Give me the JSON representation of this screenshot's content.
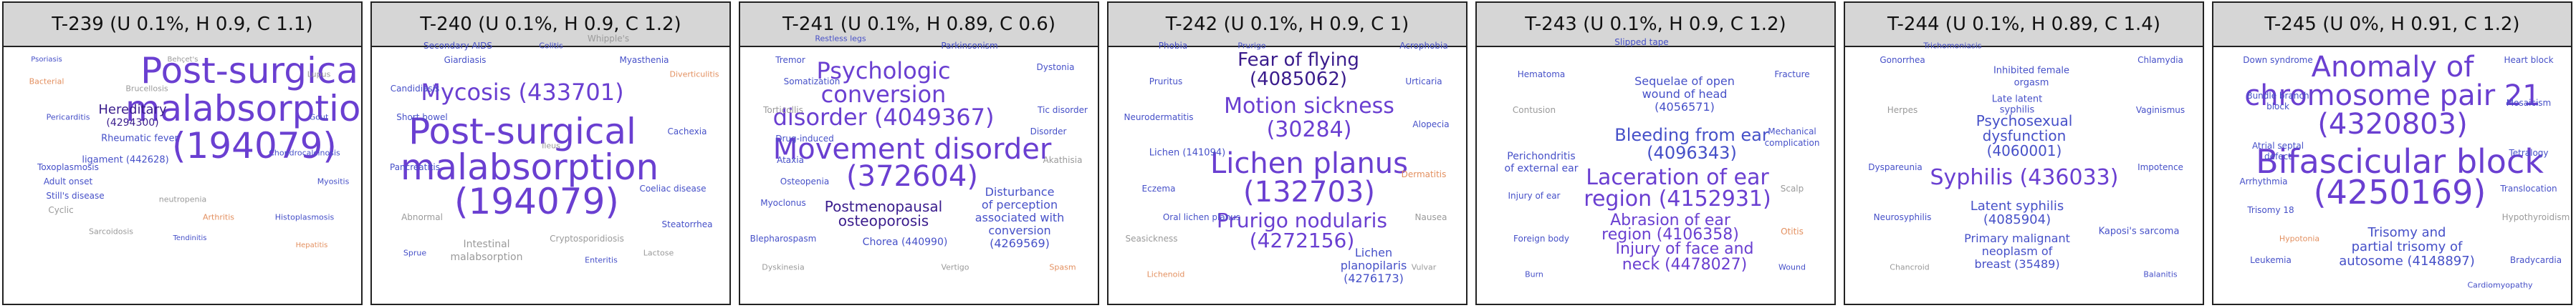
{
  "colors": {
    "purple": "#6a3fd1",
    "dark_purple": "#3a1c8c",
    "blue": "#4650c8",
    "teal": "#2b7b9a",
    "gray": "#9a9a9a",
    "orange": "#e39060",
    "header_bg": "#d6d6d6"
  },
  "panels": [
    {
      "title": "T-239 (U 0.1%, H 0.9, C 1.1)",
      "words": [
        {
          "t": "Post-surgical",
          "c": "purple"
        },
        {
          "t": "malabsorption",
          "c": "purple"
        },
        {
          "t": "(194079)",
          "c": "purple"
        },
        {
          "t": "Hereditary",
          "c": "dark_purple"
        },
        {
          "t": "(4294300)",
          "c": "dark_purple"
        },
        {
          "t": "Rheumatic fever",
          "c": "blue"
        },
        {
          "t": "ligament (442628)",
          "c": "blue"
        },
        {
          "t": "Toxoplasmosis",
          "c": "blue"
        },
        {
          "t": "Adult onset",
          "c": "blue"
        },
        {
          "t": "Still's disease",
          "c": "blue"
        },
        {
          "t": "Cyclic",
          "c": "gray"
        },
        {
          "t": "neutropenia",
          "c": "gray"
        },
        {
          "t": "Bacterial",
          "c": "orange"
        },
        {
          "t": "Lupus",
          "c": "gray"
        },
        {
          "t": "Pericarditis",
          "c": "blue"
        },
        {
          "t": "Histoplasmosis",
          "c": "blue"
        },
        {
          "t": "Sarcoidosis",
          "c": "gray"
        },
        {
          "t": "Gout",
          "c": "blue"
        },
        {
          "t": "Myositis",
          "c": "blue"
        },
        {
          "t": "Arthritis",
          "c": "orange"
        },
        {
          "t": "Brucellosis",
          "c": "gray"
        },
        {
          "t": "Chondrocalcinosis",
          "c": "blue"
        },
        {
          "t": "Psoriasis",
          "c": "blue"
        },
        {
          "t": "Behçet's",
          "c": "gray"
        },
        {
          "t": "Hepatitis",
          "c": "orange"
        },
        {
          "t": "Tendinitis",
          "c": "blue"
        }
      ]
    },
    {
      "title": "T-240 (U 0.1%, H 0.9, C 1.2)",
      "words": [
        {
          "t": "Mycosis (433701)",
          "c": "purple"
        },
        {
          "t": "Post-surgical",
          "c": "purple"
        },
        {
          "t": "malabsorption",
          "c": "purple"
        },
        {
          "t": "(194079)",
          "c": "purple"
        },
        {
          "t": "Intestinal",
          "c": "gray"
        },
        {
          "t": "malabsorption",
          "c": "gray"
        },
        {
          "t": "Secondary AIDS",
          "c": "blue"
        },
        {
          "t": "Myasthenia",
          "c": "blue"
        },
        {
          "t": "Candidiasis",
          "c": "blue"
        },
        {
          "t": "Coeliac disease",
          "c": "blue"
        },
        {
          "t": "Abnormal",
          "c": "gray"
        },
        {
          "t": "Cachexia",
          "c": "blue"
        },
        {
          "t": "Short bowel",
          "c": "blue"
        },
        {
          "t": "Cryptosporidiosis",
          "c": "gray"
        },
        {
          "t": "Pancreatitis",
          "c": "blue"
        },
        {
          "t": "Steatorrhea",
          "c": "blue"
        },
        {
          "t": "Whipple's",
          "c": "gray"
        },
        {
          "t": "Giardiasis",
          "c": "blue"
        },
        {
          "t": "Sprue",
          "c": "blue"
        },
        {
          "t": "Lactose",
          "c": "gray"
        },
        {
          "t": "Diverticulitis",
          "c": "orange"
        },
        {
          "t": "Enteritis",
          "c": "blue"
        },
        {
          "t": "Colitis",
          "c": "blue"
        },
        {
          "t": "Ileus",
          "c": "gray"
        }
      ]
    },
    {
      "title": "T-241 (U 0.1%, H 0.89, C 0.6)",
      "words": [
        {
          "t": "Psychologic",
          "c": "purple"
        },
        {
          "t": "conversion",
          "c": "purple"
        },
        {
          "t": "disorder (4049367)",
          "c": "purple"
        },
        {
          "t": "Movement disorder",
          "c": "purple"
        },
        {
          "t": "(372604)",
          "c": "purple"
        },
        {
          "t": "Postmenopausal",
          "c": "dark_purple"
        },
        {
          "t": "osteoporosis",
          "c": "dark_purple"
        },
        {
          "t": "Disturbance",
          "c": "blue"
        },
        {
          "t": "of perception",
          "c": "blue"
        },
        {
          "t": "associated with",
          "c": "blue"
        },
        {
          "t": "conversion",
          "c": "blue"
        },
        {
          "t": "(4269569)",
          "c": "blue"
        },
        {
          "t": "Chorea (440990)",
          "c": "blue"
        },
        {
          "t": "Tremor",
          "c": "blue"
        },
        {
          "t": "Dystonia",
          "c": "blue"
        },
        {
          "t": "Torticollis",
          "c": "gray"
        },
        {
          "t": "Tic disorder",
          "c": "blue"
        },
        {
          "t": "Ataxia",
          "c": "blue"
        },
        {
          "t": "Myoclonus",
          "c": "blue"
        },
        {
          "t": "Akathisia",
          "c": "gray"
        },
        {
          "t": "Blepharospasm",
          "c": "blue"
        },
        {
          "t": "Parkinsonism",
          "c": "blue"
        },
        {
          "t": "Osteopenia",
          "c": "blue"
        },
        {
          "t": "Drug-induced",
          "c": "blue"
        },
        {
          "t": "Somatization",
          "c": "blue"
        },
        {
          "t": "Disorder",
          "c": "blue"
        },
        {
          "t": "Dyskinesia",
          "c": "gray"
        },
        {
          "t": "Spasm",
          "c": "orange"
        },
        {
          "t": "Vertigo",
          "c": "gray"
        },
        {
          "t": "Restless legs",
          "c": "blue"
        }
      ]
    },
    {
      "title": "T-242 (U 0.1%, H 0.9, C 1)",
      "words": [
        {
          "t": "Fear of flying",
          "c": "dark_purple"
        },
        {
          "t": "(4085062)",
          "c": "dark_purple"
        },
        {
          "t": "Motion sickness",
          "c": "purple"
        },
        {
          "t": "(30284)",
          "c": "purple"
        },
        {
          "t": "Lichen planus",
          "c": "purple"
        },
        {
          "t": "(132703)",
          "c": "purple"
        },
        {
          "t": "Prurigo nodularis",
          "c": "purple"
        },
        {
          "t": "(4272156)",
          "c": "purple"
        },
        {
          "t": "Lichen",
          "c": "blue"
        },
        {
          "t": "planopilaris",
          "c": "blue"
        },
        {
          "t": "(4276173)",
          "c": "blue"
        },
        {
          "t": "Lichen (141094)",
          "c": "blue"
        },
        {
          "t": "Pruritus",
          "c": "blue"
        },
        {
          "t": "Urticaria",
          "c": "blue"
        },
        {
          "t": "Neurodermatitis",
          "c": "blue"
        },
        {
          "t": "Alopecia",
          "c": "blue"
        },
        {
          "t": "Phobia",
          "c": "blue"
        },
        {
          "t": "Dermatitis",
          "c": "orange"
        },
        {
          "t": "Eczema",
          "c": "blue"
        },
        {
          "t": "Nausea",
          "c": "gray"
        },
        {
          "t": "Seasickness",
          "c": "gray"
        },
        {
          "t": "Acrophobia",
          "c": "blue"
        },
        {
          "t": "Lichenoid",
          "c": "orange"
        },
        {
          "t": "Oral lichen planus",
          "c": "blue"
        },
        {
          "t": "Vulvar",
          "c": "gray"
        },
        {
          "t": "Prurigo",
          "c": "blue"
        }
      ]
    },
    {
      "title": "T-243 (U 0.1%, H 0.9, C 1.2)",
      "words": [
        {
          "t": "Sequelae of open",
          "c": "blue"
        },
        {
          "t": "wound of head",
          "c": "blue"
        },
        {
          "t": "(4056571)",
          "c": "blue"
        },
        {
          "t": "Bleeding from ear",
          "c": "blue"
        },
        {
          "t": "(4096343)",
          "c": "blue"
        },
        {
          "t": "Laceration of ear",
          "c": "purple"
        },
        {
          "t": "region (4152931)",
          "c": "purple"
        },
        {
          "t": "Abrasion of ear",
          "c": "purple"
        },
        {
          "t": "region (4106358)",
          "c": "purple"
        },
        {
          "t": "Injury of face and",
          "c": "purple"
        },
        {
          "t": "neck (4478027)",
          "c": "purple"
        },
        {
          "t": "Slipped tape",
          "c": "blue"
        },
        {
          "t": "Mechanical",
          "c": "blue"
        },
        {
          "t": "complication",
          "c": "blue"
        },
        {
          "t": "Perichondritis",
          "c": "blue"
        },
        {
          "t": "of external ear",
          "c": "blue"
        },
        {
          "t": "Injury of ear",
          "c": "blue"
        },
        {
          "t": "Hematoma",
          "c": "blue"
        },
        {
          "t": "Fracture",
          "c": "blue"
        },
        {
          "t": "Contusion",
          "c": "gray"
        },
        {
          "t": "Scalp",
          "c": "gray"
        },
        {
          "t": "Foreign body",
          "c": "blue"
        },
        {
          "t": "Otitis",
          "c": "orange"
        },
        {
          "t": "Burn",
          "c": "blue"
        },
        {
          "t": "Wound",
          "c": "blue"
        }
      ]
    },
    {
      "title": "T-244 (U 0.1%, H 0.89, C 1.4)",
      "words": [
        {
          "t": "Psychosexual",
          "c": "blue"
        },
        {
          "t": "dysfunction",
          "c": "blue"
        },
        {
          "t": "(4060001)",
          "c": "blue"
        },
        {
          "t": "Syphilis (436033)",
          "c": "purple"
        },
        {
          "t": "Latent syphilis",
          "c": "blue"
        },
        {
          "t": "(4085904)",
          "c": "blue"
        },
        {
          "t": "Primary malignant",
          "c": "blue"
        },
        {
          "t": "neoplasm of",
          "c": "blue"
        },
        {
          "t": "breast (35489)",
          "c": "blue"
        },
        {
          "t": "Kaposi's sarcoma",
          "c": "blue"
        },
        {
          "t": "Inhibited female",
          "c": "blue"
        },
        {
          "t": "orgasm",
          "c": "blue"
        },
        {
          "t": "Late latent",
          "c": "blue"
        },
        {
          "t": "syphilis",
          "c": "blue"
        },
        {
          "t": "Gonorrhea",
          "c": "blue"
        },
        {
          "t": "Chlamydia",
          "c": "blue"
        },
        {
          "t": "Herpes",
          "c": "gray"
        },
        {
          "t": "Vaginismus",
          "c": "blue"
        },
        {
          "t": "Dyspareunia",
          "c": "blue"
        },
        {
          "t": "Impotence",
          "c": "blue"
        },
        {
          "t": "Neurosyphilis",
          "c": "blue"
        },
        {
          "t": "Chancroid",
          "c": "gray"
        },
        {
          "t": "Balanitis",
          "c": "blue"
        },
        {
          "t": "Trichomoniasis",
          "c": "blue"
        }
      ]
    },
    {
      "title": "T-245 (U 0%, H 0.91, C 1.2)",
      "words": [
        {
          "t": "Anomaly of",
          "c": "purple"
        },
        {
          "t": "chromosome pair 21",
          "c": "purple"
        },
        {
          "t": "(4320803)",
          "c": "purple"
        },
        {
          "t": "Bifascicular block",
          "c": "purple"
        },
        {
          "t": "(4250169)",
          "c": "purple"
        },
        {
          "t": "Trisomy and",
          "c": "blue"
        },
        {
          "t": "partial trisomy of",
          "c": "blue"
        },
        {
          "t": "autosome (4148897)",
          "c": "blue"
        },
        {
          "t": "Down syndrome",
          "c": "blue"
        },
        {
          "t": "Heart block",
          "c": "blue"
        },
        {
          "t": "Bundle branch",
          "c": "blue"
        },
        {
          "t": "block",
          "c": "blue"
        },
        {
          "t": "Mosaicism",
          "c": "blue"
        },
        {
          "t": "Atrial septal",
          "c": "blue"
        },
        {
          "t": "defect",
          "c": "blue"
        },
        {
          "t": "Tetralogy",
          "c": "blue"
        },
        {
          "t": "Trisomy 18",
          "c": "blue"
        },
        {
          "t": "Hypothyroidism",
          "c": "gray"
        },
        {
          "t": "Leukemia",
          "c": "blue"
        },
        {
          "t": "Bradycardia",
          "c": "blue"
        },
        {
          "t": "Arrhythmia",
          "c": "blue"
        },
        {
          "t": "Translocation",
          "c": "blue"
        },
        {
          "t": "Hypotonia",
          "c": "orange"
        },
        {
          "t": "Cardiomyopathy",
          "c": "blue"
        }
      ]
    }
  ]
}
